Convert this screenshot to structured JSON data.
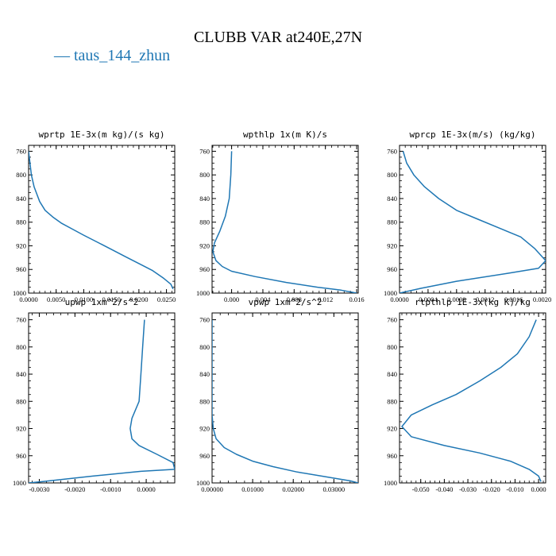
{
  "figure": {
    "title": "CLUBB VAR at240E,27N",
    "legend_label": "taus_144_zhun",
    "line_color": "#1f77b4"
  },
  "chart_data": [
    {
      "type": "line",
      "title": "wprtp  1E-3x(m kg)/(s kg)",
      "xlim": [
        0,
        0.0265
      ],
      "ylim": [
        1000,
        750
      ],
      "xticks": [
        0,
        0.005,
        0.01,
        0.015,
        0.02,
        0.025
      ],
      "xticklabels": [
        "0.0000",
        "0.0050",
        "0.0100",
        "0.0150",
        "0.0200",
        "0.0250"
      ],
      "yticks": [
        760,
        800,
        840,
        880,
        920,
        960,
        1000
      ],
      "series": [
        {
          "x": [
            0.0,
            0.0005,
            0.001,
            0.002,
            0.003,
            0.0045,
            0.006,
            0.008,
            0.01,
            0.0125,
            0.015,
            0.0175,
            0.02,
            0.0225,
            0.0245,
            0.0258,
            0.0262
          ],
          "y": [
            760,
            800,
            820,
            845,
            860,
            872,
            882,
            892,
            902,
            914,
            926,
            938,
            950,
            962,
            975,
            985,
            993
          ]
        }
      ]
    },
    {
      "type": "line",
      "title": "wpthlp  1x(m K)/s",
      "xlim": [
        -0.0025,
        0.0162
      ],
      "ylim": [
        1000,
        750
      ],
      "xticks": [
        0,
        0.004,
        0.008,
        0.012,
        0.016
      ],
      "xticklabels": [
        "0.000",
        "0.004",
        "0.008",
        "0.012",
        "0.016"
      ],
      "yticks": [
        760,
        800,
        840,
        880,
        920,
        960,
        1000
      ],
      "series": [
        {
          "x": [
            0.0,
            -0.0001,
            -0.0003,
            -0.0008,
            -0.0015,
            -0.0022,
            -0.0024,
            -0.002,
            -0.0012,
            0.0,
            0.003,
            0.007,
            0.011,
            0.014,
            0.016
          ],
          "y": [
            760,
            800,
            840,
            870,
            895,
            915,
            930,
            945,
            955,
            963,
            972,
            982,
            990,
            995,
            1000
          ]
        }
      ]
    },
    {
      "type": "line",
      "title": "wprcp  1E-3x(m/s) (kg/kg)",
      "xlim": [
        0,
        0.00205
      ],
      "ylim": [
        1000,
        750
      ],
      "xticks": [
        0,
        0.0004,
        0.0008,
        0.0012,
        0.0016,
        0.002
      ],
      "xticklabels": [
        "0.0000",
        "0.0004",
        "0.0008",
        "0.0012",
        "0.0016",
        "0.0020"
      ],
      "yticks": [
        760,
        800,
        840,
        880,
        920,
        960,
        1000
      ],
      "series": [
        {
          "x": [
            5e-05,
            0.0001,
            0.0002,
            0.00035,
            0.00055,
            0.0008,
            0.0011,
            0.0014,
            0.0017,
            0.0019,
            0.00205,
            0.00195,
            0.0015,
            0.0008,
            0.0003,
            0.0
          ],
          "y": [
            760,
            780,
            800,
            820,
            840,
            860,
            875,
            890,
            905,
            925,
            945,
            958,
            967,
            980,
            992,
            1000
          ]
        }
      ]
    },
    {
      "type": "line",
      "title": "upwp  1xm^2/s^2",
      "xlim": [
        -0.0033,
        0.0008
      ],
      "ylim": [
        1000,
        750
      ],
      "xticks": [
        -0.003,
        -0.002,
        -0.001,
        0
      ],
      "xticklabels": [
        "-0.0030",
        "-0.0020",
        "-0.0010",
        "0.0000"
      ],
      "yticks": [
        760,
        800,
        840,
        880,
        920,
        960,
        1000
      ],
      "series": [
        {
          "x": [
            -5e-05,
            -0.0001,
            -0.00015,
            -0.0002,
            -0.0004,
            -0.00045,
            -0.0004,
            -0.0002,
            0.0003,
            0.00075,
            0.0008,
            -0.00015,
            -0.0015,
            -0.0029,
            -0.0033
          ],
          "y": [
            760,
            800,
            840,
            880,
            905,
            920,
            935,
            945,
            958,
            970,
            980,
            983,
            990,
            998,
            1000
          ]
        }
      ]
    },
    {
      "type": "line",
      "title": "vpwp  1xm^2/s^2",
      "xlim": [
        0,
        0.036
      ],
      "ylim": [
        1000,
        750
      ],
      "xticks": [
        0,
        0.01,
        0.02,
        0.03
      ],
      "xticklabels": [
        "0.00000",
        "0.01000",
        "0.02000",
        "0.03000"
      ],
      "yticks": [
        760,
        800,
        840,
        880,
        920,
        960,
        1000
      ],
      "series": [
        {
          "x": [
            0.0,
            0.0,
            0.0003,
            0.001,
            0.003,
            0.006,
            0.01,
            0.015,
            0.021,
            0.028,
            0.034,
            0.036
          ],
          "y": [
            760,
            900,
            920,
            935,
            948,
            958,
            968,
            976,
            984,
            991,
            997,
            1000
          ]
        }
      ]
    },
    {
      "type": "line",
      "title": "rtpthlp  1E-3x(kg K)/kg",
      "xlim": [
        -0.059,
        0.003
      ],
      "ylim": [
        1000,
        750
      ],
      "xticks": [
        -0.05,
        -0.04,
        -0.03,
        -0.02,
        -0.01,
        0
      ],
      "xticklabels": [
        "-0.050",
        "-0.040",
        "-0.030",
        "-0.020",
        "-0.010",
        "0.000"
      ],
      "yticks": [
        760,
        800,
        840,
        880,
        920,
        960,
        1000
      ],
      "series": [
        {
          "x": [
            -0.001,
            -0.004,
            -0.009,
            -0.016,
            -0.025,
            -0.035,
            -0.045,
            -0.054,
            -0.058,
            -0.054,
            -0.04,
            -0.025,
            -0.012,
            -0.004,
            0.0,
            0.001
          ],
          "y": [
            760,
            785,
            810,
            830,
            850,
            870,
            885,
            900,
            917,
            932,
            945,
            956,
            968,
            980,
            990,
            998
          ]
        }
      ]
    }
  ]
}
